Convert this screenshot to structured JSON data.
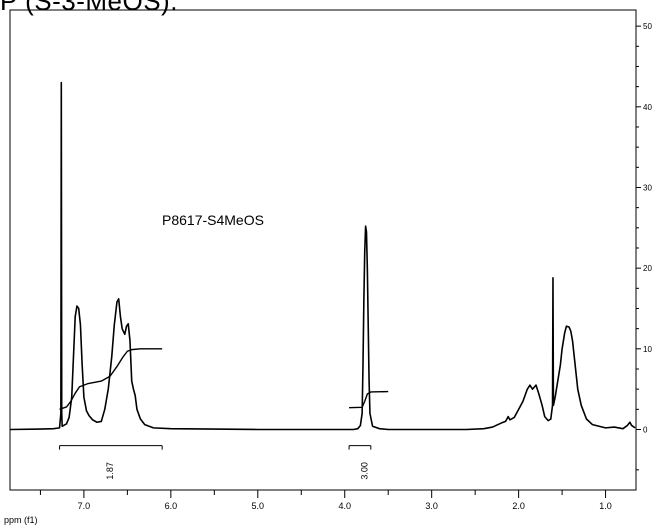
{
  "chart_data": {
    "type": "line",
    "title_partial": "P (S-3-MeOS).",
    "sample_label": "P8617-S4MeOS",
    "xlabel": "ppm (f1)",
    "x_reversed": true,
    "xlim": [
      7.85,
      0.65
    ],
    "ylim": [
      -7.5,
      52
    ],
    "x_ticks": [
      7.0,
      6.0,
      5.0,
      4.0,
      3.0,
      2.0,
      1.0
    ],
    "x_tick_labels": [
      "7.0",
      "6.0",
      "5.0",
      "4.0",
      "3.0",
      "2.0",
      "1.0"
    ],
    "right_ticks": [
      0,
      10,
      20,
      30,
      40,
      50
    ],
    "right_tick_labels": [
      "0",
      "10",
      "20",
      "30",
      "40",
      "50"
    ],
    "grid": false,
    "series": [
      {
        "kind": "spectrum",
        "points": [
          [
            7.85,
            0
          ],
          [
            7.5,
            0.05
          ],
          [
            7.35,
            0.1
          ],
          [
            7.28,
            0.2
          ],
          [
            7.265,
            2
          ],
          [
            7.26,
            43
          ],
          [
            7.255,
            2
          ],
          [
            7.25,
            0.4
          ],
          [
            7.2,
            0.7
          ],
          [
            7.17,
            1.5
          ],
          [
            7.14,
            4
          ],
          [
            7.12,
            9
          ],
          [
            7.1,
            14
          ],
          [
            7.08,
            15.3
          ],
          [
            7.06,
            15
          ],
          [
            7.04,
            13
          ],
          [
            7.02,
            8
          ],
          [
            7.0,
            4
          ],
          [
            6.97,
            2.3
          ],
          [
            6.94,
            1.7
          ],
          [
            6.9,
            1.2
          ],
          [
            6.85,
            0.9
          ],
          [
            6.8,
            1.0
          ],
          [
            6.76,
            2.5
          ],
          [
            6.72,
            5
          ],
          [
            6.68,
            9
          ],
          [
            6.65,
            13
          ],
          [
            6.62,
            15.8
          ],
          [
            6.6,
            16.2
          ],
          [
            6.58,
            14
          ],
          [
            6.56,
            12.5
          ],
          [
            6.53,
            11.8
          ],
          [
            6.51,
            12.8
          ],
          [
            6.49,
            13.1
          ],
          [
            6.47,
            11
          ],
          [
            6.45,
            6
          ],
          [
            6.43,
            5
          ],
          [
            6.41,
            4.2
          ],
          [
            6.39,
            2.5
          ],
          [
            6.35,
            1.3
          ],
          [
            6.3,
            0.6
          ],
          [
            6.2,
            0.2
          ],
          [
            6.0,
            0.1
          ],
          [
            5.0,
            0
          ],
          [
            4.0,
            0
          ],
          [
            3.9,
            0
          ],
          [
            3.85,
            0.1
          ],
          [
            3.82,
            0.5
          ],
          [
            3.8,
            2
          ],
          [
            3.79,
            8
          ],
          [
            3.78,
            16
          ],
          [
            3.77,
            22
          ],
          [
            3.76,
            25.2
          ],
          [
            3.75,
            24.5
          ],
          [
            3.74,
            20
          ],
          [
            3.73,
            13
          ],
          [
            3.72,
            6
          ],
          [
            3.71,
            2
          ],
          [
            3.68,
            0.4
          ],
          [
            3.6,
            0.1
          ],
          [
            3.5,
            0
          ],
          [
            3.0,
            0
          ],
          [
            2.6,
            0
          ],
          [
            2.4,
            0.1
          ],
          [
            2.3,
            0.3
          ],
          [
            2.2,
            0.8
          ],
          [
            2.15,
            1.0
          ],
          [
            2.12,
            1.6
          ],
          [
            2.1,
            1.2
          ],
          [
            2.05,
            1.5
          ],
          [
            2.0,
            2.5
          ],
          [
            1.95,
            3.5
          ],
          [
            1.9,
            5
          ],
          [
            1.87,
            5.5
          ],
          [
            1.84,
            5
          ],
          [
            1.8,
            5.5
          ],
          [
            1.77,
            4.5
          ],
          [
            1.73,
            3
          ],
          [
            1.7,
            1.6
          ],
          [
            1.66,
            1.1
          ],
          [
            1.63,
            1.3
          ],
          [
            1.61,
            3
          ],
          [
            1.605,
            18.8
          ],
          [
            1.6,
            3
          ],
          [
            1.58,
            4
          ],
          [
            1.55,
            6
          ],
          [
            1.52,
            8
          ],
          [
            1.5,
            10
          ],
          [
            1.47,
            12
          ],
          [
            1.45,
            12.8
          ],
          [
            1.42,
            12.7
          ],
          [
            1.4,
            12.2
          ],
          [
            1.38,
            11
          ],
          [
            1.35,
            8
          ],
          [
            1.32,
            5
          ],
          [
            1.28,
            3
          ],
          [
            1.22,
            1.3
          ],
          [
            1.15,
            0.6
          ],
          [
            1.0,
            0.2
          ],
          [
            0.9,
            0.3
          ],
          [
            0.8,
            0.1
          ],
          [
            0.75,
            0.5
          ],
          [
            0.72,
            0.9
          ],
          [
            0.7,
            0.5
          ],
          [
            0.66,
            0.2
          ]
        ]
      },
      {
        "kind": "integral",
        "start_ppm": 7.28,
        "end_ppm": 6.1,
        "baseline": 2.5,
        "top": 10,
        "points": [
          [
            7.28,
            2.5
          ],
          [
            7.2,
            2.8
          ],
          [
            7.15,
            3.5
          ],
          [
            7.1,
            4.5
          ],
          [
            7.05,
            5.3
          ],
          [
            6.95,
            5.7
          ],
          [
            6.8,
            6.0
          ],
          [
            6.7,
            6.6
          ],
          [
            6.62,
            7.8
          ],
          [
            6.55,
            9.0
          ],
          [
            6.5,
            9.7
          ],
          [
            6.45,
            9.9
          ],
          [
            6.35,
            10
          ],
          [
            6.1,
            10
          ]
        ]
      },
      {
        "kind": "integral",
        "start_ppm": 3.95,
        "end_ppm": 3.5,
        "baseline": 2.7,
        "top": 4.7,
        "points": [
          [
            3.95,
            2.7
          ],
          [
            3.8,
            2.75
          ],
          [
            3.77,
            3.5
          ],
          [
            3.74,
            4.4
          ],
          [
            3.7,
            4.65
          ],
          [
            3.5,
            4.7
          ]
        ]
      }
    ],
    "integrations": [
      {
        "label": "1.87",
        "from_ppm": 7.28,
        "to_ppm": 6.1,
        "label_ppm": 6.7
      },
      {
        "label": "3.00",
        "from_ppm": 3.95,
        "to_ppm": 3.7,
        "label_ppm": 3.77
      }
    ]
  }
}
